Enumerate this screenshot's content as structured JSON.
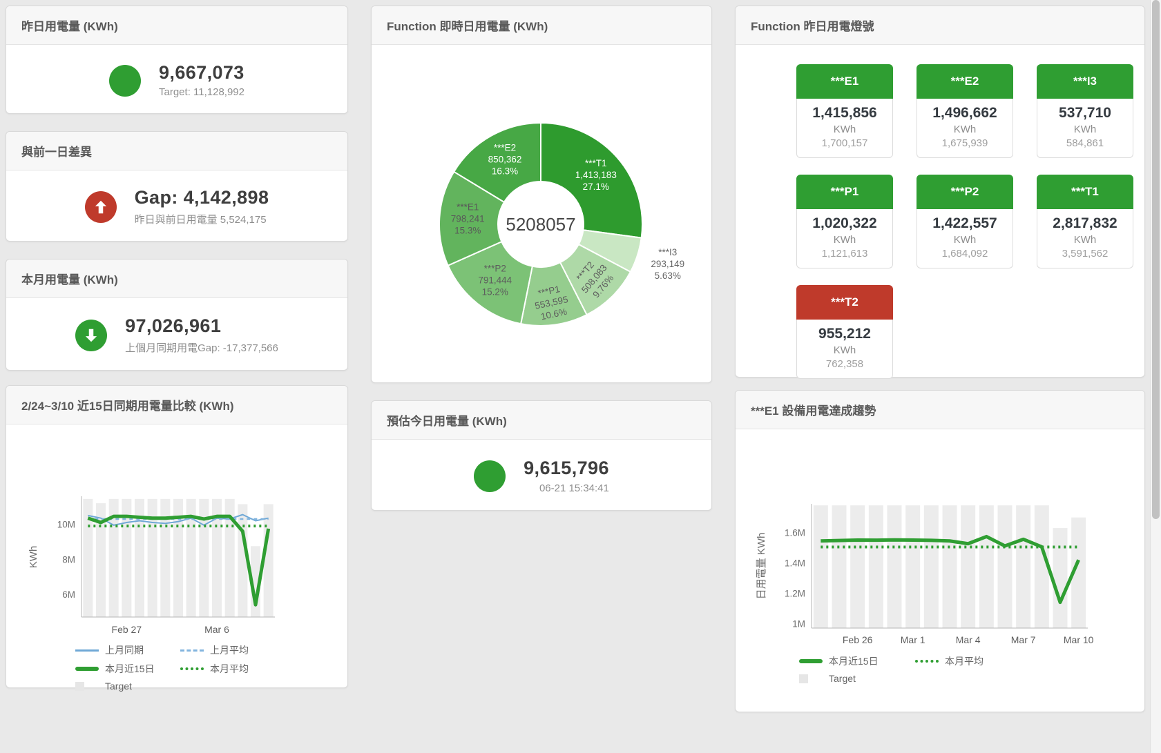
{
  "colors": {
    "green": "#2f9e32",
    "red": "#bf3a2b",
    "bar": "#ececec",
    "blue": "#6fa8d6",
    "blue_dash": "#82b4de",
    "axis": "#b4b4b4"
  },
  "cards": {
    "yesterday": {
      "title": "昨日用電量 (KWh)",
      "value": "9,667,073",
      "sub": "Target: 11,128,992"
    },
    "diff": {
      "title": "與前一日差異",
      "value": "Gap: 4,142,898",
      "sub": "昨日與前日用電量 5,524,175"
    },
    "month": {
      "title": "本月用電量 (KWh)",
      "value": "97,026,961",
      "sub": "上個月同期用電Gap: -17,377,566"
    },
    "donut": {
      "title": "Function 即時日用電量 (KWh)"
    },
    "estimate": {
      "title": "預估今日用電量 (KWh)",
      "value": "9,615,796",
      "sub": "06-21 15:34:41"
    },
    "lights": {
      "title": "Function 昨日用電燈號",
      "tiles": [
        {
          "label": "***E1",
          "value": "1,415,856",
          "unit": "KWh",
          "target": "1,700,157",
          "status": "green"
        },
        {
          "label": "***E2",
          "value": "1,496,662",
          "unit": "KWh",
          "target": "1,675,939",
          "status": "green"
        },
        {
          "label": "***I3",
          "value": "537,710",
          "unit": "KWh",
          "target": "584,861",
          "status": "green"
        },
        {
          "label": "***P1",
          "value": "1,020,322",
          "unit": "KWh",
          "target": "1,121,613",
          "status": "green"
        },
        {
          "label": "***P2",
          "value": "1,422,557",
          "unit": "KWh",
          "target": "1,684,092",
          "status": "green"
        },
        {
          "label": "***T1",
          "value": "2,817,832",
          "unit": "KWh",
          "target": "3,591,562",
          "status": "green"
        },
        {
          "label": "***T2",
          "value": "955,212",
          "unit": "KWh",
          "target": "762,358",
          "status": "red"
        }
      ]
    },
    "compare": {
      "title": "2/24~3/10 近15日同期用電量比較 (KWh)"
    },
    "e1trend": {
      "title": "***E1 設備用電達成趨勢"
    }
  },
  "chart_data": [
    {
      "id": "donut",
      "type": "pie",
      "title": "Function 即時日用電量 (KWh)",
      "center_total": "5208057",
      "slices": [
        {
          "name": "***T1",
          "value": 1413183,
          "display": "1,413,183",
          "pct": "27.1%",
          "color": "#2e9b2e",
          "label_color": "#ffffff"
        },
        {
          "name": "***I3",
          "value": 293149,
          "display": "293,149",
          "pct": "5.63%",
          "color": "#c9e7c3",
          "label_color": "#666666",
          "outside": true
        },
        {
          "name": "***T2",
          "value": 508083,
          "display": "508,083",
          "pct": "9.76%",
          "color": "#aed9a7",
          "label_color": "#5d5d5d",
          "rotate": -50,
          "label_radius": 112
        },
        {
          "name": "***P1",
          "value": 553595,
          "display": "553,595",
          "pct": "10.6%",
          "color": "#95cd8e",
          "label_color": "#5d5d5d",
          "rotate": -12,
          "label_radius": 116
        },
        {
          "name": "***P2",
          "value": 791444,
          "display": "791,444",
          "pct": "15.2%",
          "color": "#7cc276",
          "label_color": "#5d5d5d"
        },
        {
          "name": "***E1",
          "value": 798241,
          "display": "798,241",
          "pct": "15.3%",
          "color": "#62b45d",
          "label_color": "#595959"
        },
        {
          "name": "***E2",
          "value": 850362,
          "display": "850,362",
          "pct": "16.3%",
          "color": "#47a845",
          "label_color": "#ffffff"
        }
      ]
    },
    {
      "id": "compare15",
      "type": "line+bar",
      "title": "2/24~3/10 近15日同期用電量比較 (KWh)",
      "ylabel": "KWh",
      "ylim": [
        4700000,
        11600000
      ],
      "n": 15,
      "bar_color": "#ececec",
      "yticks": [
        {
          "v": 6000000,
          "label": "6M"
        },
        {
          "v": 8000000,
          "label": "8M"
        },
        {
          "v": 10000000,
          "label": "10M"
        }
      ],
      "xticks": [
        {
          "i": 3,
          "label": "Feb 27"
        },
        {
          "i": 10,
          "label": "Mar 6"
        }
      ],
      "target": [
        11450000,
        11200000,
        11450000,
        11450000,
        11450000,
        11450000,
        11450000,
        11450000,
        11450000,
        11450000,
        11450000,
        11450000,
        11150000,
        8750000,
        11150000
      ],
      "series": [
        {
          "name": "上月同期",
          "style": "thin",
          "color": "#6fa8d6",
          "values": [
            10500000,
            10350000,
            9950000,
            10100000,
            10200000,
            10100000,
            10050000,
            10150000,
            10350000,
            9950000,
            10350000,
            10300000,
            10550000,
            10200000,
            10350000
          ]
        },
        {
          "name": "上月平均",
          "style": "dashed",
          "color": "#82b4de",
          "const": 10300000
        },
        {
          "name": "本月近15日",
          "style": "thick",
          "color": "#2f9e32",
          "values": [
            10350000,
            10100000,
            10450000,
            10450000,
            10400000,
            10350000,
            10350000,
            10400000,
            10450000,
            10300000,
            10450000,
            10450000,
            9600000,
            5400000,
            9750000
          ]
        },
        {
          "name": "本月平均",
          "style": "dotted",
          "color": "#2f9e32",
          "const": 9900000
        }
      ],
      "legend": [
        {
          "label": "上月同期",
          "style": "thin",
          "color": "#6fa8d6"
        },
        {
          "label": "上月平均",
          "style": "dashed",
          "color": "#82b4de"
        },
        {
          "label": "本月近15日",
          "style": "thick",
          "color": "#2f9e32"
        },
        {
          "label": "本月平均",
          "style": "dotted",
          "color": "#2f9e32"
        },
        {
          "label": "Target",
          "style": "square",
          "color": "#e6e6e6"
        }
      ]
    },
    {
      "id": "e1trend",
      "type": "line+bar",
      "title": "***E1 設備用電達成趨勢",
      "ylabel": "日用電量 KWh",
      "ylim": [
        970000,
        1790000
      ],
      "n": 15,
      "bar_color": "#ececec",
      "yticks": [
        {
          "v": 1000000,
          "label": "1M"
        },
        {
          "v": 1200000,
          "label": "1.2M"
        },
        {
          "v": 1400000,
          "label": "1.4M"
        },
        {
          "v": 1600000,
          "label": "1.6M"
        }
      ],
      "xticks": [
        {
          "i": 2,
          "label": "Feb 26"
        },
        {
          "i": 5,
          "label": "Mar 1"
        },
        {
          "i": 8,
          "label": "Mar 4"
        },
        {
          "i": 11,
          "label": "Mar 7"
        },
        {
          "i": 14,
          "label": "Mar 10"
        }
      ],
      "target": [
        1780000,
        1780000,
        1780000,
        1780000,
        1780000,
        1780000,
        1780000,
        1780000,
        1780000,
        1780000,
        1780000,
        1780000,
        1780000,
        1630000,
        1700000
      ],
      "series": [
        {
          "name": "本月近15日",
          "style": "thick",
          "color": "#2f9e32",
          "values": [
            1545000,
            1548000,
            1551000,
            1550000,
            1552000,
            1551000,
            1549000,
            1545000,
            1527000,
            1574000,
            1512000,
            1556000,
            1506000,
            1140000,
            1420000
          ]
        },
        {
          "name": "本月平均",
          "style": "dotted",
          "color": "#2f9e32",
          "const": 1505000
        }
      ],
      "legend": [
        {
          "label": "本月近15日",
          "style": "thick",
          "color": "#2f9e32"
        },
        {
          "label": "本月平均",
          "style": "dotted",
          "color": "#2f9e32"
        },
        {
          "label": "Target",
          "style": "square",
          "color": "#e6e6e6"
        }
      ]
    }
  ]
}
